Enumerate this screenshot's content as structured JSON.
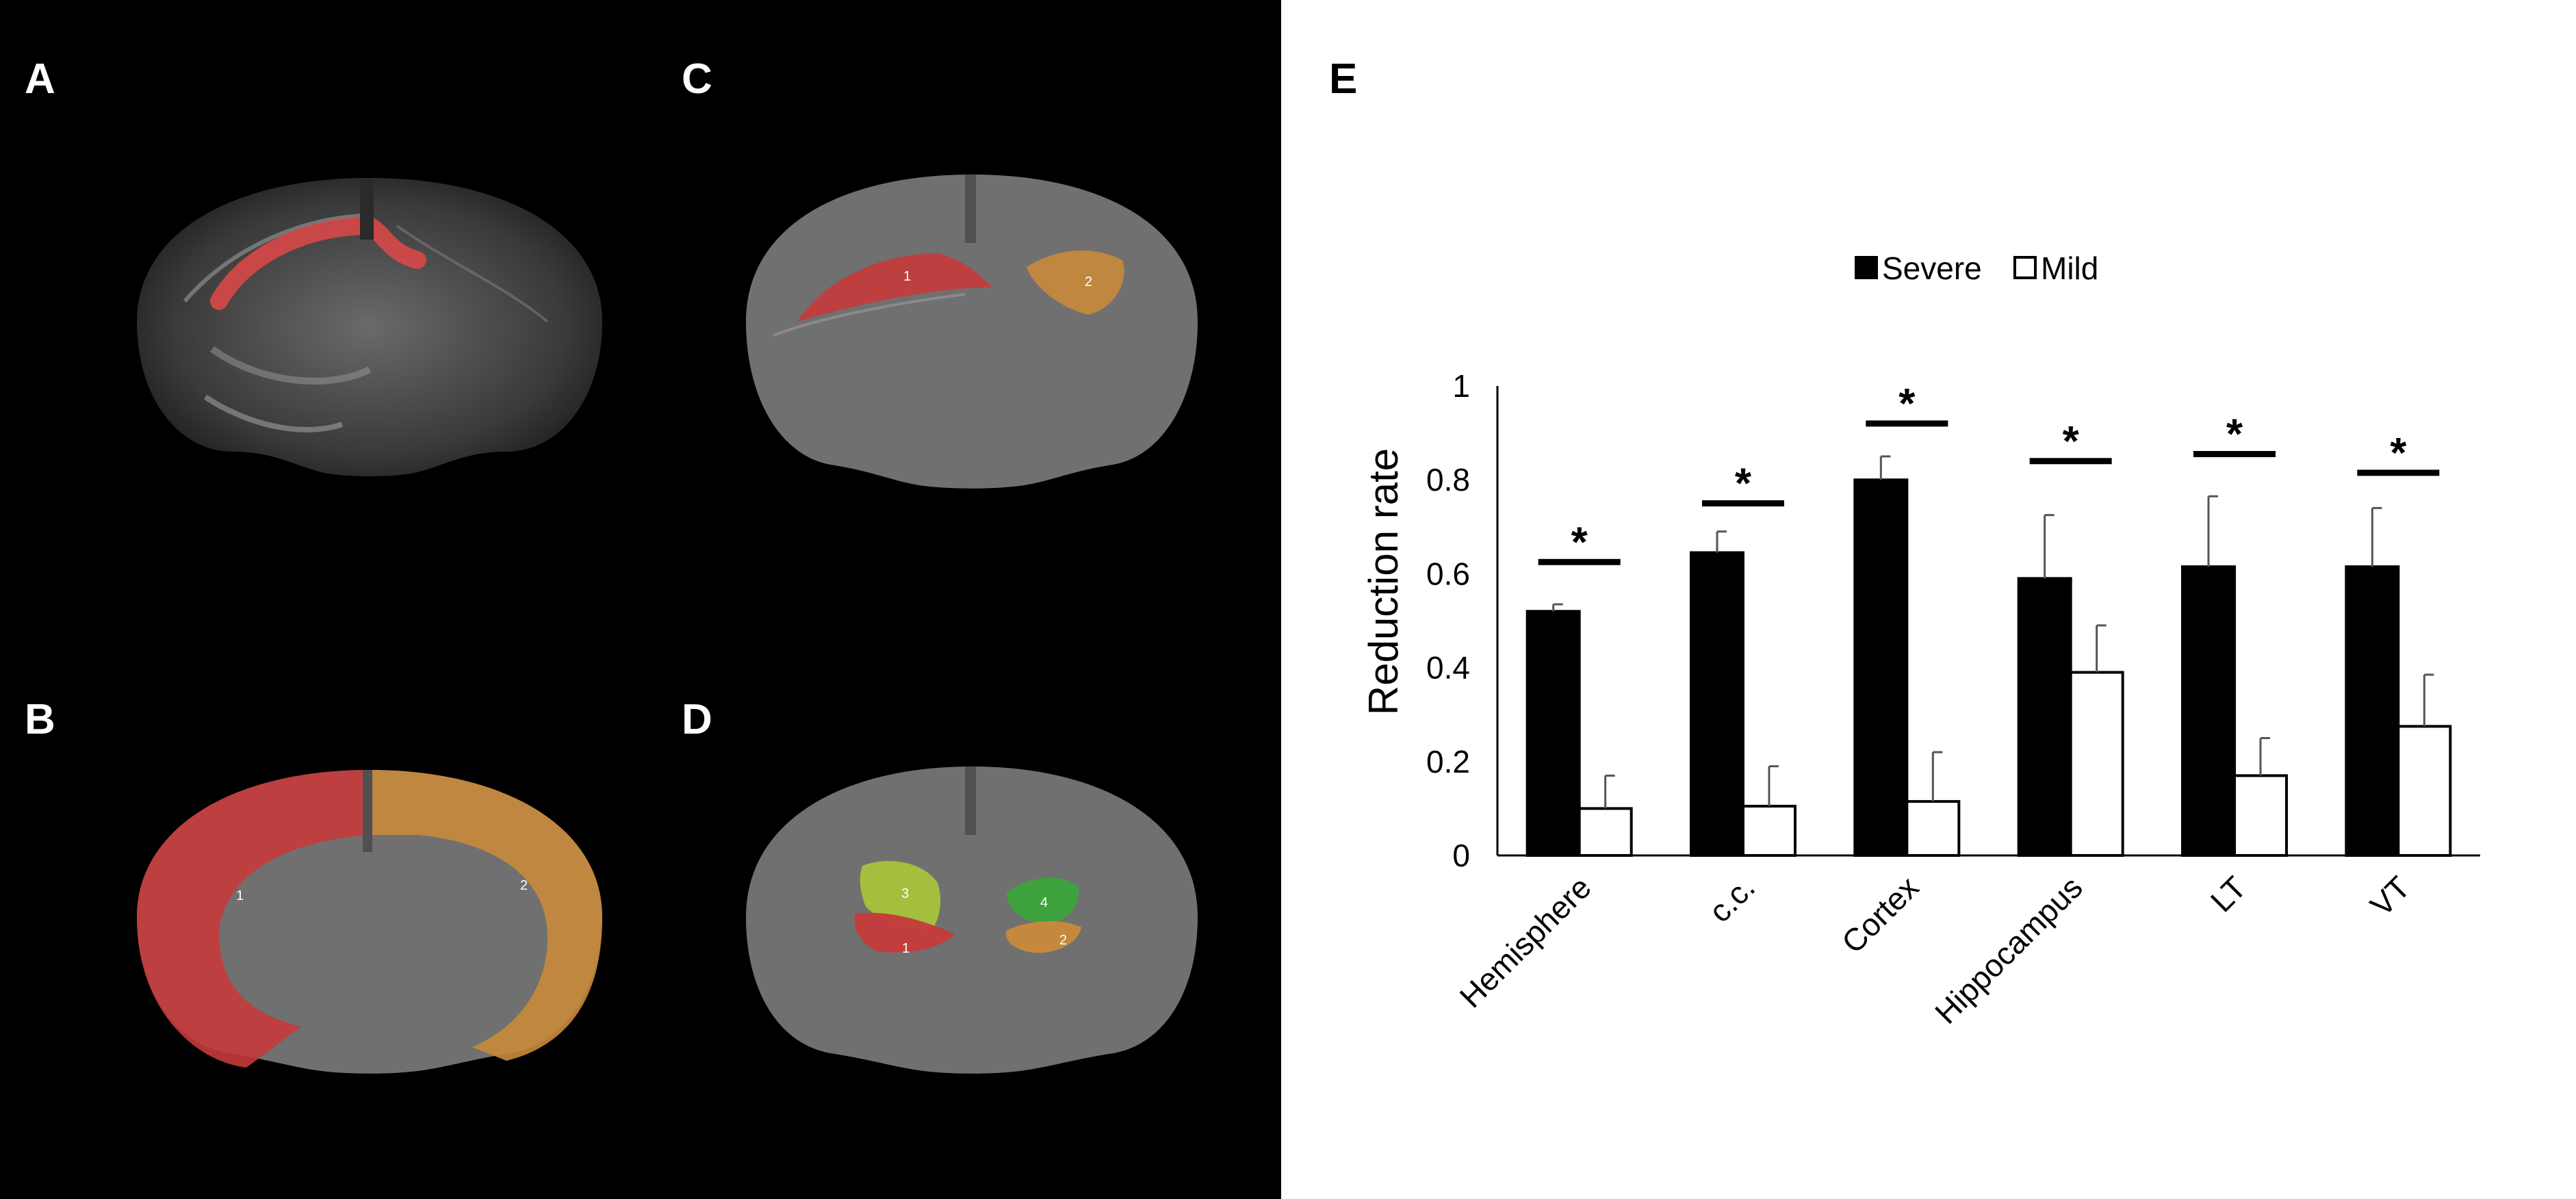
{
  "panels": {
    "a": {
      "label": "A"
    },
    "b": {
      "label": "B",
      "regions": [
        "1",
        "2"
      ]
    },
    "c": {
      "label": "C",
      "regions": [
        "1",
        "2"
      ]
    },
    "d": {
      "label": "D",
      "regions": [
        "1",
        "2",
        "3",
        "4"
      ]
    },
    "e": {
      "label": "E"
    }
  },
  "colors": {
    "severe": "#000000",
    "mild": "#ffffff",
    "red_region": "#c63a3a",
    "orange_region": "#c88a3a",
    "green_light": "#a6c23a",
    "green_dark": "#3aa43a"
  },
  "chart_data": {
    "type": "bar",
    "title": "",
    "xlabel": "",
    "ylabel": "Reduction rate",
    "ylim": [
      0,
      1
    ],
    "yticks": [
      "0",
      "0.2",
      "0.4",
      "0.6",
      "0.8",
      "1"
    ],
    "categories": [
      "Hemisphere",
      "c.c.",
      "Cortex",
      "Hippocampus",
      "LT",
      "VT"
    ],
    "series": [
      {
        "name": "Severe",
        "values": [
          0.52,
          0.645,
          0.8,
          0.59,
          0.615,
          0.615
        ],
        "errors": [
          0.015,
          0.045,
          0.05,
          0.135,
          0.15,
          0.125
        ]
      },
      {
        "name": "Mild",
        "values": [
          0.1,
          0.105,
          0.115,
          0.39,
          0.17,
          0.275
        ],
        "errors": [
          0.07,
          0.085,
          0.105,
          0.1,
          0.08,
          0.11
        ]
      }
    ],
    "significance": [
      {
        "category": "Hemisphere",
        "marker": "*",
        "level": 0.625
      },
      {
        "category": "c.c.",
        "marker": "*",
        "level": 0.75
      },
      {
        "category": "Cortex",
        "marker": "*",
        "level": 0.92
      },
      {
        "category": "Hippocampus",
        "marker": "*",
        "level": 0.84
      },
      {
        "category": "LT",
        "marker": "*",
        "level": 0.855
      },
      {
        "category": "VT",
        "marker": "*",
        "level": 0.815
      }
    ],
    "legend_position": "top-center",
    "grid": false
  }
}
